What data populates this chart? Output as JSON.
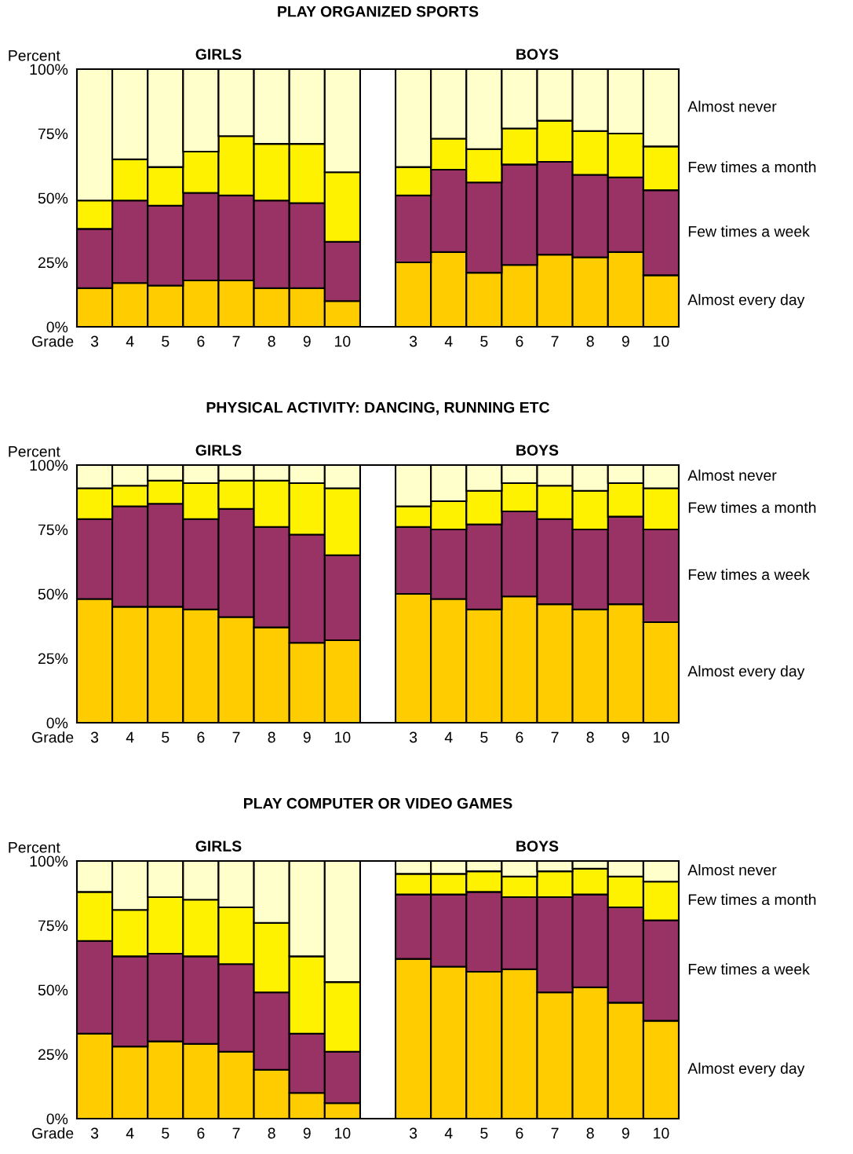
{
  "chart_data": [
    {
      "type": "bar",
      "stacked": true,
      "title": "PLAY ORGANIZED SPORTS",
      "xlabel": "Grade",
      "ylabel": "Percent",
      "annotations": [
        "GIRLS",
        "BOYS"
      ],
      "categories": [
        "3",
        "4",
        "5",
        "6",
        "7",
        "8",
        "9",
        "10",
        null,
        "3",
        "4",
        "5",
        "6",
        "7",
        "8",
        "9",
        "10"
      ],
      "ylim": [
        0,
        100
      ],
      "yticks": [
        {
          "value": 0,
          "label": "0%"
        },
        {
          "value": 25,
          "label": "25%"
        },
        {
          "value": 50,
          "label": "50%"
        },
        {
          "value": 75,
          "label": "75%"
        },
        {
          "value": 100,
          "label": "100%"
        }
      ],
      "series": [
        {
          "name": "Almost every day",
          "color": "#ffcc00",
          "values": [
            15,
            17,
            16,
            18,
            18,
            15,
            15,
            10,
            null,
            25,
            29,
            21,
            24,
            28,
            27,
            29,
            20
          ]
        },
        {
          "name": "Few times a week",
          "color": "#993366",
          "values": [
            23,
            32,
            31,
            34,
            33,
            34,
            33,
            23,
            null,
            26,
            32,
            35,
            39,
            36,
            32,
            29,
            33
          ]
        },
        {
          "name": "Few times a month",
          "color": "#fff200",
          "values": [
            11,
            16,
            15,
            16,
            23,
            22,
            23,
            27,
            null,
            11,
            12,
            13,
            14,
            16,
            17,
            17,
            17
          ]
        },
        {
          "name": "Almost never",
          "color": "#ffffcc",
          "values": [
            51,
            35,
            38,
            32,
            26,
            29,
            29,
            40,
            null,
            38,
            27,
            31,
            23,
            20,
            24,
            25,
            30
          ]
        }
      ]
    },
    {
      "type": "bar",
      "stacked": true,
      "title": "PHYSICAL ACTIVITY: DANCING, RUNNING ETC",
      "xlabel": "Grade",
      "ylabel": "Percent",
      "annotations": [
        "GIRLS",
        "BOYS"
      ],
      "categories": [
        "3",
        "4",
        "5",
        "6",
        "7",
        "8",
        "9",
        "10",
        null,
        "3",
        "4",
        "5",
        "6",
        "7",
        "8",
        "9",
        "10"
      ],
      "ylim": [
        0,
        100
      ],
      "yticks": [
        {
          "value": 0,
          "label": "0%"
        },
        {
          "value": 25,
          "label": "25%"
        },
        {
          "value": 50,
          "label": "50%"
        },
        {
          "value": 75,
          "label": "75%"
        },
        {
          "value": 100,
          "label": "100%"
        }
      ],
      "series": [
        {
          "name": "Almost every day",
          "color": "#ffcc00",
          "values": [
            48,
            45,
            45,
            44,
            41,
            37,
            31,
            32,
            null,
            50,
            48,
            44,
            49,
            46,
            44,
            46,
            39
          ]
        },
        {
          "name": "Few times a week",
          "color": "#993366",
          "values": [
            31,
            39,
            40,
            35,
            42,
            39,
            42,
            33,
            null,
            26,
            27,
            33,
            33,
            33,
            31,
            34,
            36
          ]
        },
        {
          "name": "Few times a month",
          "color": "#fff200",
          "values": [
            12,
            8,
            9,
            14,
            11,
            18,
            20,
            26,
            null,
            8,
            11,
            13,
            11,
            13,
            15,
            13,
            16
          ]
        },
        {
          "name": "Almost never",
          "color": "#ffffcc",
          "values": [
            9,
            8,
            6,
            7,
            6,
            6,
            7,
            9,
            null,
            16,
            14,
            10,
            7,
            8,
            10,
            7,
            9
          ]
        }
      ]
    },
    {
      "type": "bar",
      "stacked": true,
      "title": "PLAY COMPUTER OR VIDEO GAMES",
      "xlabel": "Grade",
      "ylabel": "Percent",
      "annotations": [
        "GIRLS",
        "BOYS"
      ],
      "categories": [
        "3",
        "4",
        "5",
        "6",
        "7",
        "8",
        "9",
        "10",
        null,
        "3",
        "4",
        "5",
        "6",
        "7",
        "8",
        "9",
        "10"
      ],
      "ylim": [
        0,
        100
      ],
      "yticks": [
        {
          "value": 0,
          "label": "0%"
        },
        {
          "value": 25,
          "label": "25%"
        },
        {
          "value": 50,
          "label": "50%"
        },
        {
          "value": 75,
          "label": "75%"
        },
        {
          "value": 100,
          "label": "100%"
        }
      ],
      "series": [
        {
          "name": "Almost every day",
          "color": "#ffcc00",
          "values": [
            33,
            28,
            30,
            29,
            26,
            19,
            10,
            6,
            null,
            62,
            59,
            57,
            58,
            49,
            51,
            45,
            38
          ]
        },
        {
          "name": "Few times a week",
          "color": "#993366",
          "values": [
            36,
            35,
            34,
            34,
            34,
            30,
            23,
            20,
            null,
            25,
            28,
            31,
            28,
            37,
            36,
            37,
            39
          ]
        },
        {
          "name": "Few times a month",
          "color": "#fff200",
          "values": [
            19,
            18,
            22,
            22,
            22,
            27,
            30,
            27,
            null,
            8,
            8,
            8,
            8,
            10,
            10,
            12,
            15
          ]
        },
        {
          "name": "Almost never",
          "color": "#ffffcc",
          "values": [
            12,
            19,
            14,
            15,
            18,
            24,
            37,
            47,
            null,
            5,
            5,
            4,
            6,
            4,
            3,
            6,
            8
          ]
        }
      ]
    }
  ]
}
